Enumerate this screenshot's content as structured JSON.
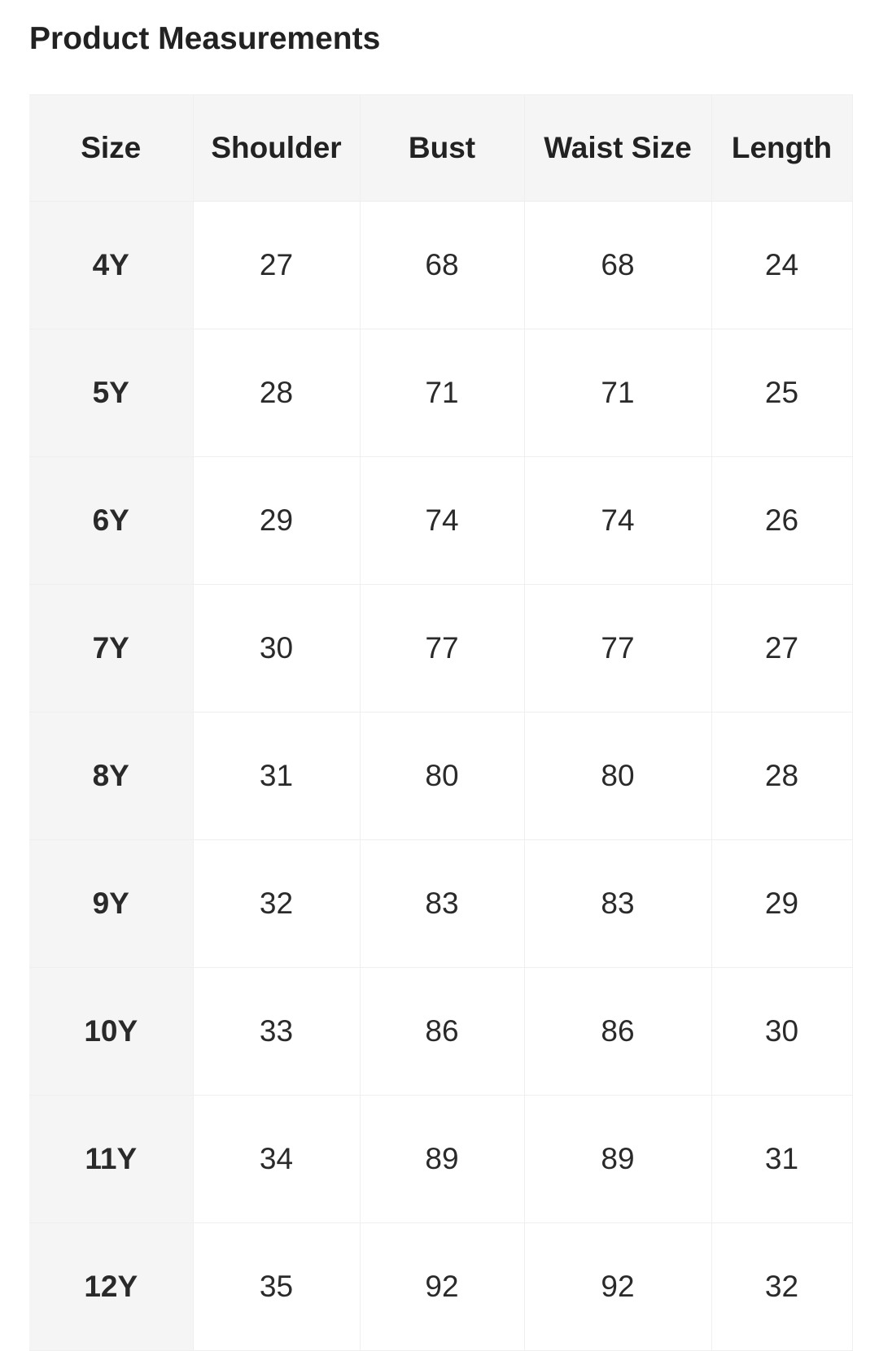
{
  "title": "Product Measurements",
  "headers": [
    "Size",
    "Shoulder",
    "Bust",
    "Waist Size",
    "Length"
  ],
  "rows": [
    [
      "4Y",
      "27",
      "68",
      "68",
      "24"
    ],
    [
      "5Y",
      "28",
      "71",
      "71",
      "25"
    ],
    [
      "6Y",
      "29",
      "74",
      "74",
      "26"
    ],
    [
      "7Y",
      "30",
      "77",
      "77",
      "27"
    ],
    [
      "8Y",
      "31",
      "80",
      "80",
      "28"
    ],
    [
      "9Y",
      "32",
      "83",
      "83",
      "29"
    ],
    [
      "10Y",
      "33",
      "86",
      "86",
      "30"
    ],
    [
      "11Y",
      "34",
      "89",
      "89",
      "31"
    ],
    [
      "12Y",
      "35",
      "92",
      "92",
      "32"
    ]
  ]
}
